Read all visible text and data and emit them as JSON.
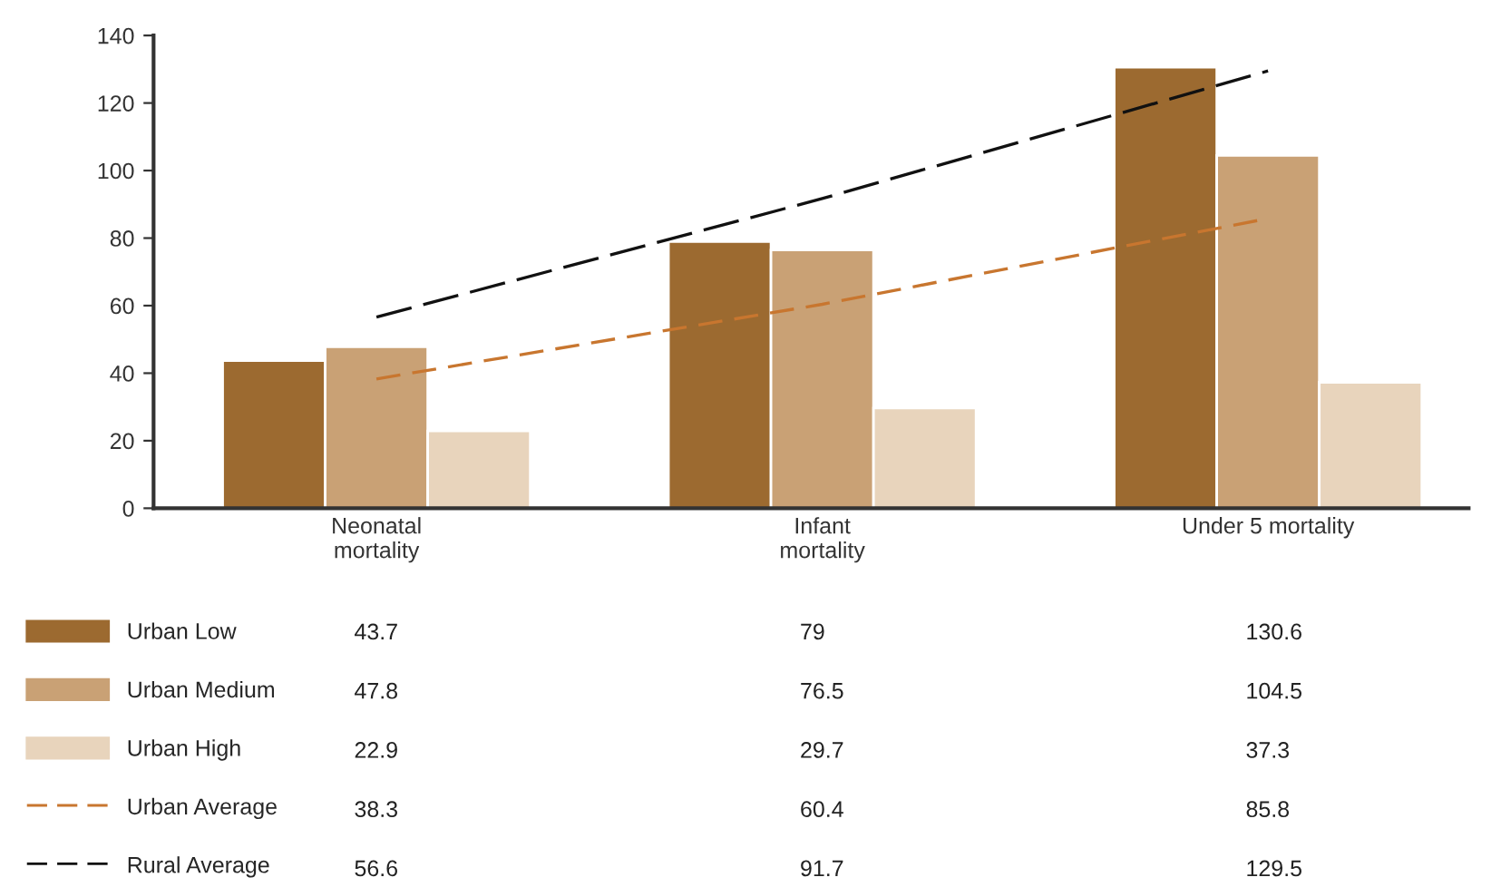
{
  "chart_data": {
    "type": "bar",
    "categories": [
      "Neonatal\nmortality",
      "Infant\nmortality",
      "Under 5 mortality"
    ],
    "series": [
      {
        "name": "Urban Low",
        "color": "#9c6a30",
        "values": [
          43.7,
          79,
          130.6
        ]
      },
      {
        "name": "Urban Medium",
        "color": "#c9a175",
        "values": [
          47.8,
          76.5,
          104.5
        ]
      },
      {
        "name": "Urban High",
        "color": "#e8d4bc",
        "values": [
          22.9,
          29.7,
          37.3
        ]
      },
      {
        "name": "Urban Average",
        "type": "line",
        "line_style": "dashed",
        "color": "#c8762f",
        "values": [
          38.3,
          60.4,
          85.8
        ]
      },
      {
        "name": "Rural Average",
        "type": "line",
        "line_style": "dashed",
        "color": "#111111",
        "values": [
          56.6,
          91.7,
          129.5
        ]
      }
    ],
    "ylim": [
      0,
      140
    ],
    "yticks": [
      0,
      20,
      40,
      60,
      80,
      100,
      120,
      140
    ],
    "grid": false,
    "legend": "bottom",
    "data_labels": true
  }
}
